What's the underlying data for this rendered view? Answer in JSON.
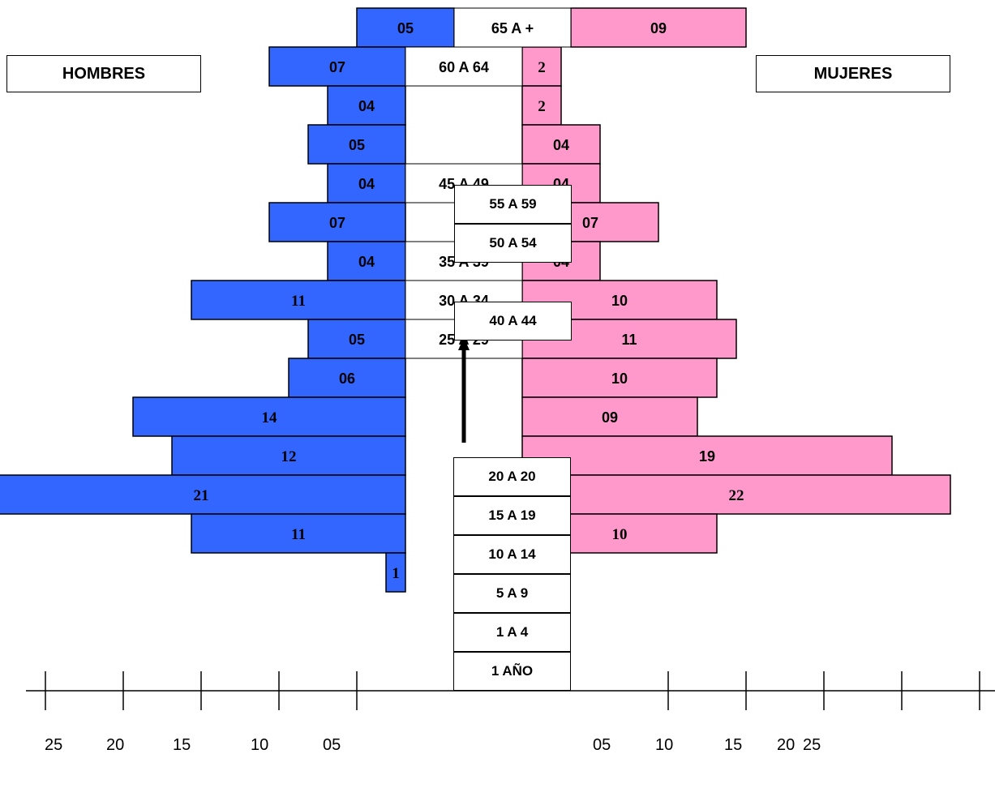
{
  "legend": {
    "men": "HOMBRES",
    "women": "MUJERES"
  },
  "colors": {
    "men": "#3366ff",
    "women": "#ff99cc",
    "outline": "#000000"
  },
  "chart_data": {
    "type": "bar",
    "title": "",
    "orientation": "horizontal-pyramid",
    "series": [
      {
        "name": "HOMBRES",
        "labels": [
          "05",
          "07",
          "04",
          "05",
          "04",
          "07",
          "04",
          "11",
          "05",
          "06",
          "14",
          "12",
          "21",
          "11",
          "1"
        ],
        "values": [
          5,
          7,
          4,
          5,
          4,
          7,
          4,
          11,
          5,
          6,
          14,
          12,
          21,
          11,
          1
        ]
      },
      {
        "name": "MUJERES",
        "labels": [
          "09",
          "2",
          "2",
          "04",
          "04",
          "07",
          "04",
          "10",
          "11",
          "10",
          "09",
          "19",
          "22",
          "10",
          ""
        ],
        "values": [
          9,
          2,
          2,
          4,
          4,
          7,
          4,
          10,
          11,
          10,
          9,
          19,
          22,
          10,
          0
        ]
      }
    ],
    "row_age_labels": [
      "65 A +",
      "60 A 64",
      "",
      "",
      "45 A 49",
      "",
      "35 A 39",
      "30 A 34",
      "25 A 29",
      "",
      "",
      "",
      "",
      "",
      ""
    ],
    "floating_age_labels": [
      "55 A 59",
      "50 A 54",
      "40 A 44"
    ],
    "stack_age_labels": [
      "20 A 20",
      "15 A 19",
      "10 A 14",
      "5 A 9",
      "1 A 4",
      "1 AÑO"
    ],
    "axis_ticks_left": [
      "25",
      "20",
      "15",
      "10",
      "05"
    ],
    "axis_ticks_right": [
      "05",
      "10",
      "15",
      "20",
      "25"
    ]
  }
}
